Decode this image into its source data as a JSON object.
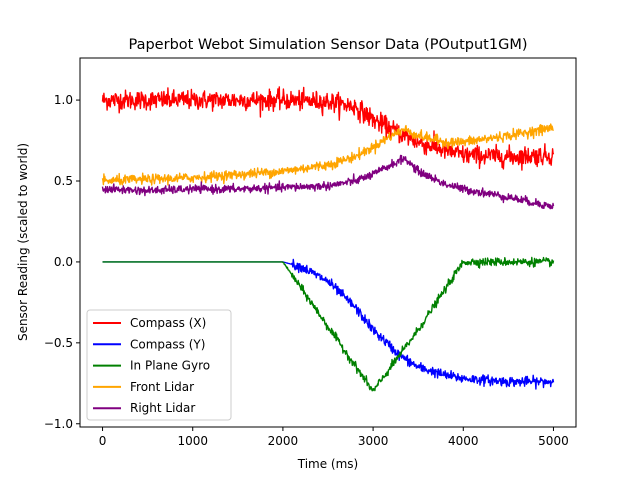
{
  "chart_data": {
    "type": "line",
    "title": "Paperbot Webot Simulation Sensor Data (POutput1GM)",
    "xlabel": "Time (ms)",
    "ylabel": "Sensor Reading (scaled to world)",
    "xlim": [
      -250,
      5250
    ],
    "ylim": [
      -1.02,
      1.26
    ],
    "xticks": [
      0,
      1000,
      2000,
      3000,
      4000,
      5000
    ],
    "xtick_labels": [
      "0",
      "1000",
      "2000",
      "3000",
      "4000",
      "5000"
    ],
    "yticks": [
      -1.0,
      -0.5,
      0.0,
      0.5,
      1.0
    ],
    "ytick_labels": [
      "−1.0",
      "−0.5",
      "0.0",
      "0.5",
      "1.0"
    ],
    "grid": false,
    "legend_position": "lower-left",
    "series": [
      {
        "name": "Compass (X)",
        "color": "#ff0000",
        "x": [
          0,
          500,
          1000,
          1500,
          2000,
          2500,
          2800,
          3000,
          3200,
          3500,
          3800,
          4000,
          4500,
          5000
        ],
        "y": [
          1.0,
          1.0,
          1.0,
          1.0,
          1.0,
          0.99,
          0.96,
          0.88,
          0.82,
          0.74,
          0.69,
          0.66,
          0.65,
          0.66
        ],
        "noise": 0.06
      },
      {
        "name": "Compass (Y)",
        "color": "#0000ff",
        "x": [
          0,
          1000,
          2000,
          2200,
          2500,
          2800,
          3000,
          3300,
          3500,
          3800,
          4000,
          4500,
          5000
        ],
        "y": [
          0.0,
          0.0,
          0.0,
          -0.03,
          -0.12,
          -0.28,
          -0.42,
          -0.58,
          -0.65,
          -0.7,
          -0.72,
          -0.74,
          -0.74
        ],
        "noise": 0.03
      },
      {
        "name": "In Plane Gyro",
        "color": "#008000",
        "x": [
          0,
          1000,
          2000,
          2500,
          3000,
          3500,
          4000,
          4500,
          5000
        ],
        "y": [
          0.0,
          0.0,
          0.0,
          -0.4,
          -0.8,
          -0.42,
          0.0,
          0.0,
          0.0
        ],
        "noise": 0.025
      },
      {
        "name": "Front Lidar",
        "color": "#ffa500",
        "x": [
          0,
          500,
          1000,
          1500,
          2000,
          2500,
          2800,
          3000,
          3200,
          3350,
          3500,
          3800,
          4000,
          4500,
          5000
        ],
        "y": [
          0.5,
          0.51,
          0.52,
          0.54,
          0.56,
          0.6,
          0.65,
          0.71,
          0.78,
          0.82,
          0.78,
          0.74,
          0.74,
          0.78,
          0.83
        ],
        "noise": 0.03
      },
      {
        "name": "Right Lidar",
        "color": "#800080",
        "x": [
          0,
          500,
          1000,
          1500,
          2000,
          2500,
          2800,
          3000,
          3200,
          3350,
          3500,
          3800,
          4000,
          4500,
          5000
        ],
        "y": [
          0.45,
          0.44,
          0.45,
          0.45,
          0.46,
          0.47,
          0.5,
          0.54,
          0.6,
          0.64,
          0.56,
          0.48,
          0.45,
          0.4,
          0.34
        ],
        "noise": 0.025
      }
    ]
  }
}
